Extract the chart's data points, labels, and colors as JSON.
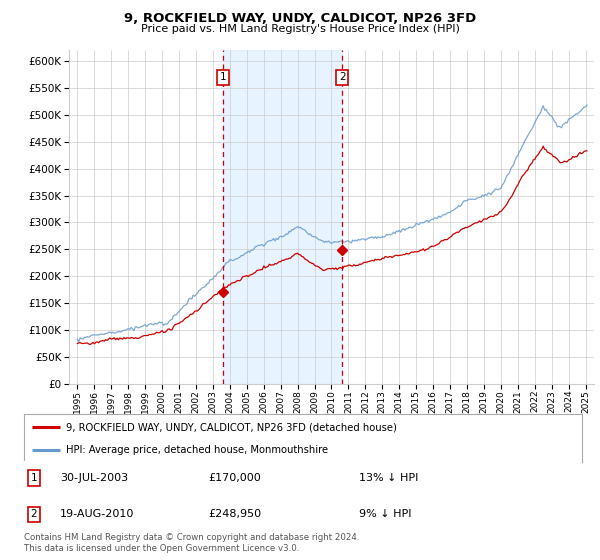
{
  "title": "9, ROCKFIELD WAY, UNDY, CALDICOT, NP26 3FD",
  "subtitle": "Price paid vs. HM Land Registry's House Price Index (HPI)",
  "legend_line1": "9, ROCKFIELD WAY, UNDY, CALDICOT, NP26 3FD (detached house)",
  "legend_line2": "HPI: Average price, detached house, Monmouthshire",
  "footer": "Contains HM Land Registry data © Crown copyright and database right 2024.\nThis data is licensed under the Open Government Licence v3.0.",
  "sale1_label": "1",
  "sale1_date": "30-JUL-2003",
  "sale1_price": "£170,000",
  "sale1_hpi": "13% ↓ HPI",
  "sale1_year": 2003.58,
  "sale1_value": 170000,
  "sale2_label": "2",
  "sale2_date": "19-AUG-2010",
  "sale2_price": "£248,950",
  "sale2_hpi": "9% ↓ HPI",
  "sale2_year": 2010.64,
  "sale2_value": 248950,
  "red_color": "#cc0000",
  "blue_color": "#6699cc",
  "vline_color": "#cc0000",
  "box_color": "#cc0000",
  "shading_color": "#ddeeff",
  "grid_color": "#cccccc",
  "bg_color": "#ffffff",
  "ylim": [
    0,
    620000
  ],
  "yticks": [
    0,
    50000,
    100000,
    150000,
    200000,
    250000,
    300000,
    350000,
    400000,
    450000,
    500000,
    550000,
    600000
  ],
  "xlim": [
    1994.5,
    2025.5
  ]
}
